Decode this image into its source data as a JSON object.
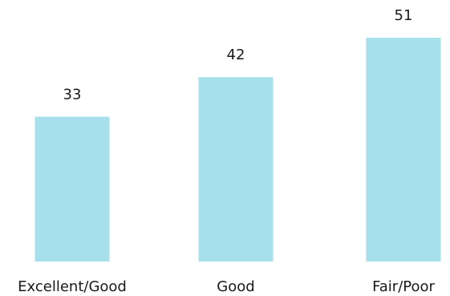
{
  "chart_data": {
    "type": "bar",
    "categories": [
      "Excellent/Good",
      "Good",
      "Fair/Poor"
    ],
    "values": [
      33,
      42,
      51
    ],
    "title": "",
    "xlabel": "",
    "ylabel": "",
    "ylim": [
      0,
      51
    ],
    "grid": false,
    "legend": "none",
    "colors": {
      "bar": "#a7dfeb",
      "text": "#1a1a1a"
    }
  }
}
